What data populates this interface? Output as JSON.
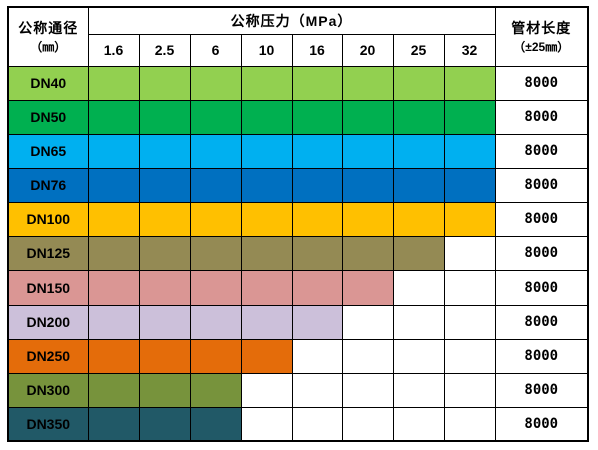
{
  "table": {
    "col_header_size": "公称通径",
    "col_header_size_unit": "（㎜）",
    "col_header_pressure": "公称压力（MPa）",
    "col_header_length": "管材长度",
    "col_header_length_tol": "（±25㎜）",
    "pressures": [
      "1.6",
      "2.5",
      "6",
      "10",
      "16",
      "20",
      "25",
      "32"
    ],
    "rows": [
      {
        "label": "DN40",
        "color": "#92d050",
        "available": 8,
        "length": "8000"
      },
      {
        "label": "DN50",
        "color": "#00b050",
        "available": 8,
        "length": "8000"
      },
      {
        "label": "DN65",
        "color": "#00b0f0",
        "available": 8,
        "length": "8000"
      },
      {
        "label": "DN76",
        "color": "#0070c0",
        "available": 8,
        "length": "8000"
      },
      {
        "label": "DN100",
        "color": "#ffc000",
        "available": 8,
        "length": "8000"
      },
      {
        "label": "DN125",
        "color": "#948a54",
        "available": 7,
        "length": "8000"
      },
      {
        "label": "DN150",
        "color": "#da9694",
        "available": 6,
        "length": "8000"
      },
      {
        "label": "DN200",
        "color": "#ccc0da",
        "available": 5,
        "length": "8000"
      },
      {
        "label": "DN250",
        "color": "#e46c0a",
        "available": 4,
        "length": "8000"
      },
      {
        "label": "DN300",
        "color": "#77933c",
        "available": 3,
        "length": "8000"
      },
      {
        "label": "DN350",
        "color": "#215967",
        "available": 3,
        "length": "8000"
      }
    ]
  }
}
